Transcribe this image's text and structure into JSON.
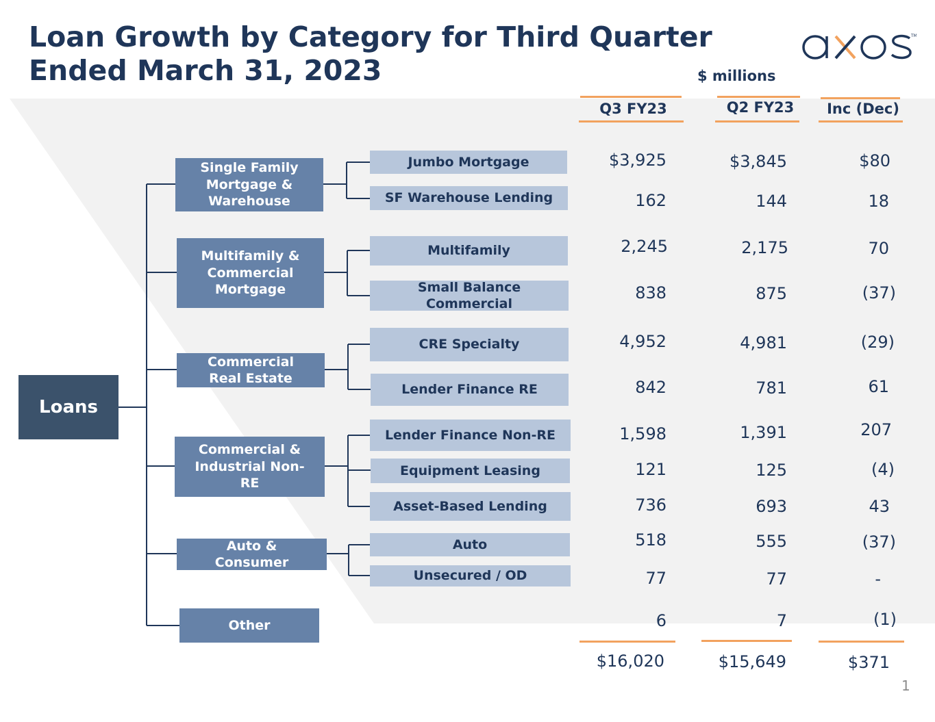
{
  "title": {
    "line1": "Loan Growth by Category for Third Quarter",
    "line2": "Ended March 31, 2023"
  },
  "units": "$ millions",
  "logo": {
    "text": "axos",
    "colors": {
      "main": "#1f3659",
      "accent": "#f2a25e"
    }
  },
  "columns": {
    "q3": "Q3 FY23",
    "q2": "Q2 FY23",
    "change": "Inc (Dec)"
  },
  "root": {
    "label": "Loans"
  },
  "groups": [
    {
      "label": "Single Family Mortgage & Warehouse"
    },
    {
      "label": "Multifamily & Commercial Mortgage"
    },
    {
      "label": "Commercial Real Estate"
    },
    {
      "label": "Commercial & Industrial Non-RE"
    },
    {
      "label": "Auto & Consumer"
    },
    {
      "label": "Other"
    }
  ],
  "rows": [
    {
      "label": "Jumbo Mortgage",
      "q3": "$3,925",
      "q2": "$3,845",
      "change": "$80"
    },
    {
      "label": "SF Warehouse Lending",
      "q3": "162",
      "q2": "144",
      "change": "18"
    },
    {
      "label": "Multifamily",
      "q3": "2,245",
      "q2": "2,175",
      "change": "70"
    },
    {
      "label": "Small Balance Commercial",
      "q3": "838",
      "q2": "875",
      "change": "(37)"
    },
    {
      "label": "CRE Specialty",
      "q3": "4,952",
      "q2": "4,981",
      "change": "(29)"
    },
    {
      "label": "Lender Finance RE",
      "q3": "842",
      "q2": "781",
      "change": "61"
    },
    {
      "label": "Lender Finance Non-RE",
      "q3": "1,598",
      "q2": "1,391",
      "change": "207"
    },
    {
      "label": "Equipment Leasing",
      "q3": "121",
      "q2": "125",
      "change": "(4)"
    },
    {
      "label": "Asset-Based Lending",
      "q3": "736",
      "q2": "693",
      "change": "43"
    },
    {
      "label": "Auto",
      "q3": "518",
      "q2": "555",
      "change": "(37)"
    },
    {
      "label": "Unsecured / OD",
      "q3": "77",
      "q2": "77",
      "change": "-"
    },
    {
      "label": "Other",
      "q3": "6",
      "q2": "7",
      "change": "(1)"
    }
  ],
  "totals": {
    "q3": "$16,020",
    "q2": "$15,649",
    "change": "$371"
  },
  "page_number": "1",
  "colors": {
    "navy": "#1f3659",
    "root_box": "#3b526b",
    "group_box": "#6682a8",
    "leaf_box": "#b7c6db",
    "rule": "#f2a25e",
    "band": "#f2f2f2"
  }
}
